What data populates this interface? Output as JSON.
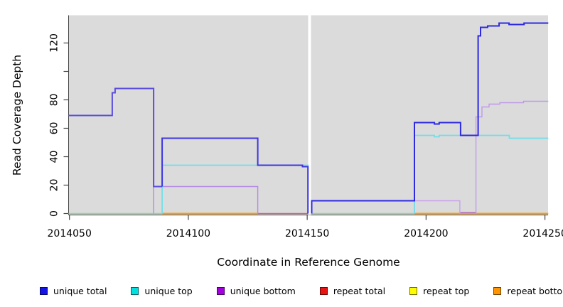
{
  "chart_data": {
    "type": "line",
    "subtype": "step-coverage-plot",
    "xlabel": "Coordinate in Reference Genome",
    "ylabel": "Read Coverage Depth",
    "xlim": [
      2014050,
      2014250
    ],
    "ylim": [
      0,
      120
    ],
    "grid": false,
    "plot_bg": "#dbdbdb",
    "axis_color": "#444444",
    "tick_label_color": "#000000",
    "gap_band": {
      "from": 2014150.4,
      "to": 2014151.6,
      "color": "#ffffff"
    },
    "x_ticks": [
      {
        "c": 2014050,
        "label": "2014050"
      },
      {
        "c": 2014100,
        "label": "2014100"
      },
      {
        "c": 2014150,
        "label": "2014150"
      },
      {
        "c": 2014200,
        "label": "2014200"
      },
      {
        "c": 2014250,
        "label": "2014250"
      }
    ],
    "y_ticks": [
      {
        "v": 0,
        "label": "0"
      },
      {
        "v": 20,
        "label": "20"
      },
      {
        "v": 40,
        "label": "40"
      },
      {
        "v": 60,
        "label": "60"
      },
      {
        "v": 80,
        "label": "80"
      },
      {
        "v": 100,
        "label": ""
      },
      {
        "v": 120,
        "label": "120"
      }
    ],
    "layout": {
      "plot": [
        96.5,
        21.5,
        771.0,
        302.5
      ],
      "x": {
        "c0": 2014050,
        "px0": 97.7,
        "c1": 2014250,
        "px1": 766.6
      },
      "y": {
        "v0": 0,
        "py0": 300.5,
        "v1": 120,
        "py1": 60.5
      },
      "tick_len": 7,
      "x_tick_label_y": 333,
      "y_tick_label_x": 80.5
    },
    "baseline_segments": [
      {
        "name": "zero-blend-green-left",
        "color": "#90d79a",
        "width": 1.4,
        "points": [
          [
            2014049.6,
            0
          ],
          [
            2014089,
            0
          ]
        ]
      },
      {
        "name": "zero-blend-green-right",
        "color": "#90d79a",
        "width": 1.4,
        "points": [
          [
            2014151.9,
            0
          ],
          [
            2014195.1,
            0
          ]
        ]
      },
      {
        "name": "zero-repeat-bottom-left",
        "color": "#ff9b05",
        "width": 2.0,
        "points": [
          [
            2014089,
            0
          ],
          [
            2014129.4,
            0
          ]
        ]
      },
      {
        "name": "zero-repeat-bottom-right",
        "color": "#ff9b05",
        "width": 2.0,
        "points": [
          [
            2014195.1,
            0
          ],
          [
            2014251.4,
            0
          ]
        ]
      },
      {
        "name": "zero-blend-pink",
        "color": "#d05f82",
        "width": 1.4,
        "points": [
          [
            2014129.2,
            0
          ],
          [
            2014150.3,
            0
          ]
        ]
      },
      {
        "name": "zero-unique-bottom-overlay",
        "color": "#ab68d2",
        "width": 1.4,
        "points": [
          [
            2014214.2,
            0.7
          ],
          [
            2014221,
            0.7
          ]
        ]
      }
    ],
    "series": [
      {
        "name": "unique bottom",
        "segments": [
          {
            "color": "#b48ae4",
            "width": 1.4,
            "points": [
              [
                2014085.4,
                0
              ],
              [
                2014085.4,
                19
              ],
              [
                2014129.2,
                0
              ]
            ]
          },
          {
            "color": "#c8a2ec",
            "width": 1.4,
            "points": [
              [
                2014195.1,
                0
              ],
              [
                2014195.1,
                9
              ],
              [
                2014214.2,
                0
              ]
            ]
          },
          {
            "color": "#c09ae8",
            "width": 1.4,
            "points": [
              [
                2014221,
                0
              ],
              [
                2014221,
                68
              ],
              [
                2014223.5,
                75
              ],
              [
                2014226.5,
                77
              ],
              [
                2014231,
                78
              ],
              [
                2014241,
                79
              ],
              [
                2014251.4,
                79
              ]
            ]
          }
        ]
      },
      {
        "name": "unique top",
        "segments": [
          {
            "color": "#6fdfe8",
            "width": 1.7,
            "points": [
              [
                2014089,
                0
              ],
              [
                2014089,
                34
              ],
              [
                2014150.3,
                0
              ]
            ]
          },
          {
            "color": "#6fdfe8",
            "width": 1.7,
            "points": [
              [
                2014195.1,
                0
              ],
              [
                2014195.1,
                55
              ],
              [
                2014203.5,
                54
              ],
              [
                2014205.5,
                55
              ],
              [
                2014235,
                53
              ],
              [
                2014251.4,
                53
              ]
            ]
          }
        ]
      },
      {
        "name": "unique total",
        "segments": [
          {
            "color": "#5a4de0",
            "width": 2,
            "points": [
              [
                2014049.6,
                69
              ],
              [
                2014068,
                85
              ],
              [
                2014069.2,
                88
              ],
              [
                2014085.4,
                19
              ],
              [
                2014089,
                19
              ]
            ]
          },
          {
            "color": "#3d35e2",
            "width": 2,
            "points": [
              [
                2014089,
                19
              ],
              [
                2014089,
                53
              ],
              [
                2014129.2,
                34
              ],
              [
                2014148,
                33
              ],
              [
                2014150.3,
                0
              ]
            ]
          },
          {
            "color": "#2d29e2",
            "width": 2,
            "points": [
              [
                2014151.9,
                0
              ],
              [
                2014151.9,
                9
              ],
              [
                2014195.1,
                64
              ],
              [
                2014203.5,
                63
              ],
              [
                2014205.5,
                64
              ],
              [
                2014214.5,
                55
              ],
              [
                2014221.9,
                125
              ],
              [
                2014222.9,
                131
              ],
              [
                2014225.9,
                132
              ],
              [
                2014230.7,
                134
              ],
              [
                2014234.9,
                133
              ],
              [
                2014241.2,
                134
              ],
              [
                2014251.4,
                134
              ]
            ]
          }
        ]
      }
    ],
    "legend": [
      {
        "label": "unique total",
        "color": "#1414e6"
      },
      {
        "label": "unique top",
        "color": "#00e0e0"
      },
      {
        "label": "unique bottom",
        "color": "#a300e0"
      },
      {
        "label": "repeat total",
        "color": "#e81414"
      },
      {
        "label": "repeat top",
        "color": "#fdfd00"
      },
      {
        "label": "repeat bottom",
        "color": "#ff9500"
      }
    ],
    "legend_position": "bottom"
  }
}
